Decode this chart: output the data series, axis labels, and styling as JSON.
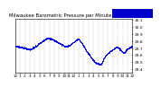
{
  "title": "Milwaukee Barometric Pressure per Minute (24 Hours)",
  "title_fontsize": 3.8,
  "bg_color": "#ffffff",
  "plot_bg": "#ffffff",
  "dot_color": "#0000ff",
  "dot_size": 0.4,
  "legend_color": "#0000cc",
  "ylim": [
    29.35,
    30.12
  ],
  "yticks": [
    29.4,
    29.5,
    29.6,
    29.7,
    29.8,
    29.9,
    30.0,
    30.1
  ],
  "ytick_labels": [
    "29.4",
    "29.5",
    "29.6",
    "29.7",
    "29.8",
    "29.9",
    "30.0",
    "30.1"
  ],
  "ytick_fontsize": 3.2,
  "xtick_fontsize": 3.0,
  "grid_color": "#bbbbbb",
  "num_points": 1440,
  "x_labels": [
    "12",
    "1",
    "2",
    "3",
    "4",
    "5",
    "6",
    "7",
    "8",
    "9",
    "10",
    "11",
    "12",
    "1",
    "2",
    "3",
    "4",
    "5",
    "6",
    "7",
    "8",
    "9",
    "10",
    "11",
    "12"
  ],
  "x_tick_positions": [
    0,
    60,
    120,
    180,
    240,
    300,
    360,
    420,
    480,
    540,
    600,
    660,
    720,
    780,
    840,
    900,
    960,
    1020,
    1080,
    1140,
    1200,
    1260,
    1320,
    1380,
    1440
  ]
}
